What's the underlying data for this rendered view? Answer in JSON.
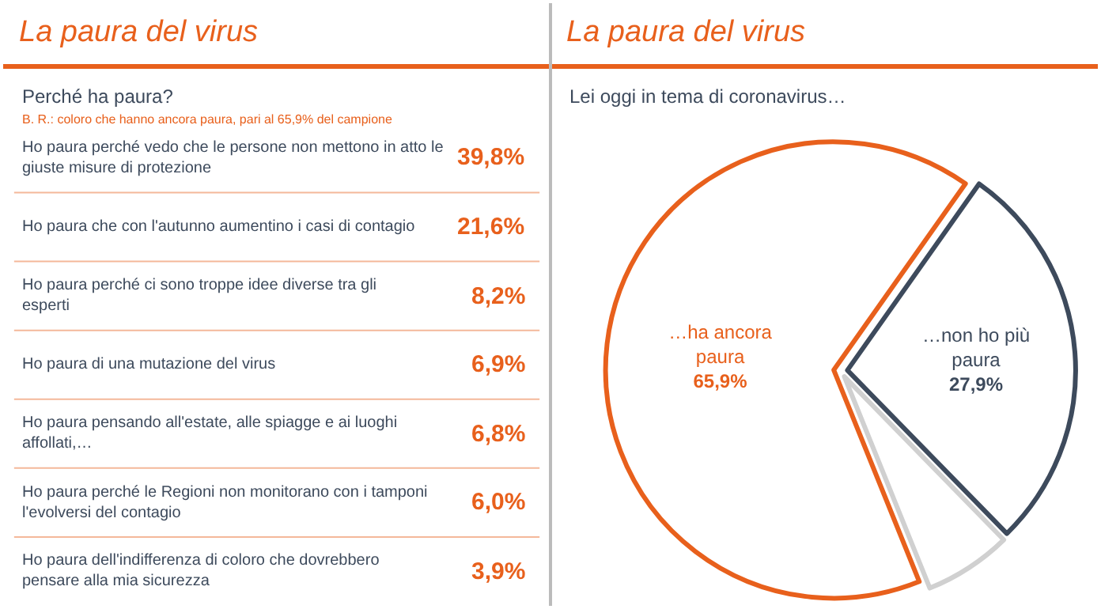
{
  "chart_data": [
    {
      "type": "other",
      "title": "La paura del virus",
      "subtitle": "Perché ha paura?",
      "annotations": [
        "B. R.: coloro che hanno ancora paura, pari al 65,9% del campione"
      ],
      "categories": [
        "Ho paura perché vedo che le persone non mettono in atto le giuste misure di protezione",
        "Ho paura che con l'autunno aumentino i casi di contagio",
        "Ho paura perché ci sono troppe idee diverse tra gli esperti",
        "Ho paura di una mutazione del virus",
        "Ho paura pensando all'estate, alle spiagge e ai luoghi affollati,…",
        "Ho paura perché le Regioni non monitorano con i tamponi l'evolversi del contagio",
        "Ho paura dell'indifferenza di coloro che dovrebbero pensare alla mia sicurezza"
      ],
      "value_labels": [
        "39,8%",
        "21,6%",
        "8,2%",
        "6,9%",
        "6,8%",
        "6,0%",
        "3,9%"
      ],
      "color": "#e8601c"
    },
    {
      "type": "pie",
      "title": "La paura del virus",
      "subtitle": "Lei oggi in tema di coronavirus…",
      "categories": [
        "…ha ancora paura",
        "…non ho più paura",
        null
      ],
      "values": [
        65.9,
        27.9,
        6.2
      ],
      "value_labels": [
        "65,9%",
        "27,9%",
        null
      ],
      "colors": [
        "#e8601c",
        "#3d4a5c",
        "#d0d0d0"
      ]
    }
  ]
}
